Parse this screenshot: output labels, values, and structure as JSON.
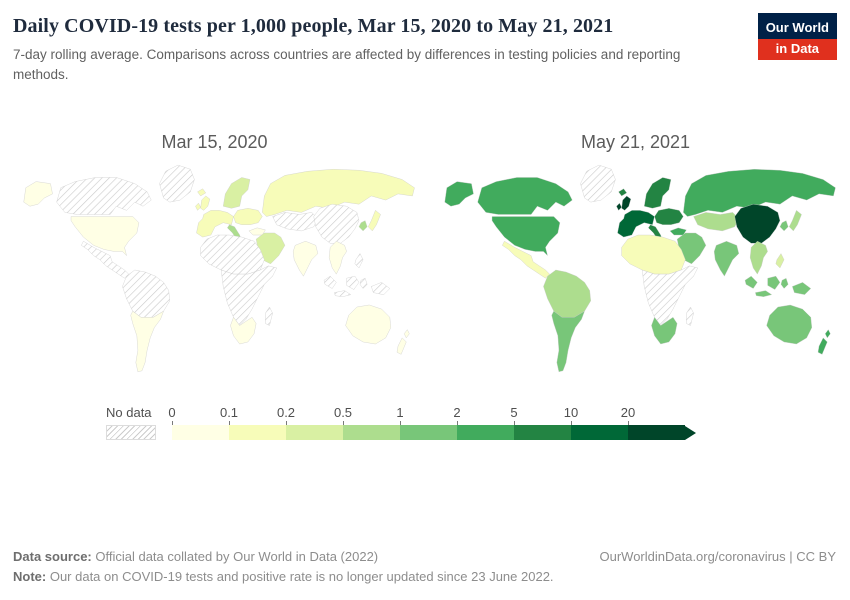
{
  "header": {
    "title": "Daily COVID-19 tests per 1,000 people, Mar 15, 2020 to May 21, 2021",
    "subtitle": "7-day rolling average. Comparisons across countries are affected by differences in testing policies and reporting methods.",
    "logo": {
      "line1": "Our World",
      "line2": "in Data",
      "bg_color": "#002147",
      "accent_color": "#e0301e"
    }
  },
  "chart_data": {
    "type": "heatmap",
    "subtype": "choropleth-world-map-comparison",
    "title": "Daily COVID-19 tests per 1,000 people",
    "unit": "tests per 1,000 people",
    "panels": [
      {
        "id": "map_2020",
        "label": "Mar 15, 2020"
      },
      {
        "id": "map_2021",
        "label": "May 21, 2021"
      }
    ],
    "legend": {
      "no_data_label": "No data",
      "thresholds": [
        0,
        0.1,
        0.2,
        0.5,
        1,
        2,
        5,
        10,
        20
      ],
      "bins": [
        {
          "tick": "0",
          "color": "#ffffe5"
        },
        {
          "tick": "0.1",
          "color": "#f7fcb9"
        },
        {
          "tick": "0.2",
          "color": "#d9f0a3"
        },
        {
          "tick": "0.5",
          "color": "#addd8e"
        },
        {
          "tick": "1",
          "color": "#78c679"
        },
        {
          "tick": "2",
          "color": "#41ab5d"
        },
        {
          "tick": "5",
          "color": "#238443"
        },
        {
          "tick": "10",
          "color": "#006837"
        },
        {
          "tick": "20",
          "color": "#004529",
          "arrow": true
        }
      ]
    },
    "region_fills": {
      "map_2020": {
        "greenland": "no_data",
        "iceland": "#f7fcb9",
        "alaska": "#ffffe5",
        "canada": "no_data",
        "usa": "#ffffe5",
        "mexico_central_america": "no_data",
        "south_america_north": "no_data",
        "south_america_south": "#ffffe5",
        "uk_ireland": "#f7fcb9",
        "scandinavia": "#d9f0a3",
        "western_europe": "#f7fcb9",
        "eastern_europe": "#f7fcb9",
        "italy": "#addd8e",
        "turkey": "#ffffe5",
        "russia": "#f7fcb9",
        "central_asia": "no_data",
        "middle_east": "#d9f0a3",
        "north_africa": "no_data",
        "sub_saharan_africa": "no_data",
        "southern_africa": "#ffffe5",
        "madagascar": "no_data",
        "india": "#ffffe5",
        "china": "no_data",
        "southeast_asia": "#ffffe5",
        "indonesia": "no_data",
        "japan": "#f7fcb9",
        "korea": "#addd8e",
        "philippines": "no_data",
        "australia": "#ffffe5",
        "new_zealand": "#ffffe5"
      },
      "map_2021": {
        "greenland": "no_data",
        "iceland": "#238443",
        "alaska": "#41ab5d",
        "canada": "#41ab5d",
        "usa": "#41ab5d",
        "mexico_central_america": "#f7fcb9",
        "south_america_north": "#addd8e",
        "south_america_south": "#78c679",
        "uk_ireland": "#004529",
        "scandinavia": "#238443",
        "western_europe": "#006837",
        "eastern_europe": "#238443",
        "italy": "#238443",
        "turkey": "#41ab5d",
        "russia": "#41ab5d",
        "central_asia": "#addd8e",
        "middle_east": "#78c679",
        "north_africa": "#f7fcb9",
        "sub_saharan_africa": "no_data",
        "southern_africa": "#78c679",
        "madagascar": "no_data",
        "india": "#78c679",
        "china": "#004529",
        "southeast_asia": "#addd8e",
        "indonesia": "#78c679",
        "japan": "#addd8e",
        "korea": "#78c679",
        "philippines": "#d9f0a3",
        "australia": "#78c679",
        "new_zealand": "#41ab5d"
      }
    }
  },
  "footer": {
    "datasource_label": "Data source:",
    "datasource_text": " Official data collated by Our World in Data (2022)",
    "note_label": "Note:",
    "note_text": " Our data on COVID-19 tests and positive rate is no longer updated since 23 June 2022.",
    "link": "OurWorldinData.org/coronavirus | CC BY"
  }
}
